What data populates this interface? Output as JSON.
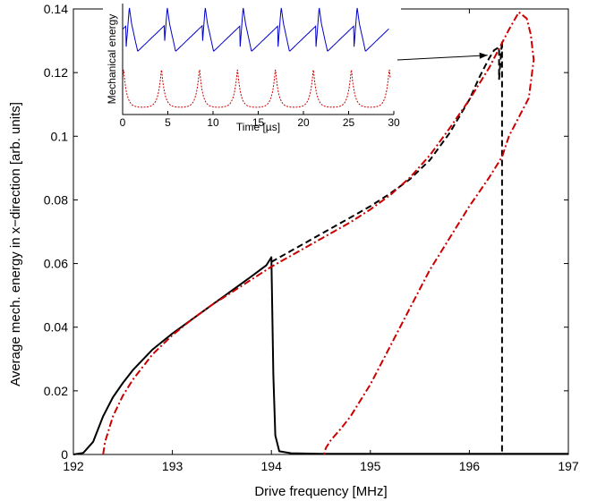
{
  "chart_data": [
    {
      "type": "line",
      "title": "",
      "xlabel": "Drive frequency [MHz]",
      "ylabel": "Average mech. energy in x−direction [arb. units]",
      "xlim": [
        192,
        197
      ],
      "ylim": [
        0,
        0.14
      ],
      "x_ticks": [
        192,
        193,
        194,
        195,
        196,
        197
      ],
      "x_tick_labels": [
        "192",
        "193",
        "194",
        "195",
        "196",
        "197"
      ],
      "y_ticks": [
        0,
        0.02,
        0.04,
        0.06,
        0.08,
        0.1,
        0.12,
        0.14
      ],
      "y_tick_labels": [
        "0",
        "0.02",
        "0.04",
        "0.06",
        "0.08",
        "0.1",
        "0.12",
        "0.14"
      ],
      "grid": false,
      "series": [
        {
          "style": "solid",
          "color": "#000000",
          "points": [
            [
              192.0,
              0.0
            ],
            [
              192.1,
              0.0005
            ],
            [
              192.2,
              0.004
            ],
            [
              192.3,
              0.012
            ],
            [
              192.4,
              0.018
            ],
            [
              192.5,
              0.0225
            ],
            [
              192.6,
              0.0265
            ],
            [
              192.8,
              0.033
            ],
            [
              193.0,
              0.038
            ],
            [
              193.2,
              0.0425
            ],
            [
              193.4,
              0.047
            ],
            [
              193.6,
              0.0515
            ],
            [
              193.8,
              0.056
            ],
            [
              193.95,
              0.0595
            ],
            [
              194.0,
              0.062
            ],
            [
              194.02,
              0.025
            ],
            [
              194.04,
              0.006
            ],
            [
              194.08,
              0.001
            ],
            [
              194.2,
              0.0004
            ],
            [
              194.5,
              0.0002
            ],
            [
              195.0,
              0.0002
            ],
            [
              196.0,
              0.0002
            ],
            [
              197.0,
              0.0002
            ]
          ]
        },
        {
          "style": "dashed",
          "color": "#000000",
          "points": [
            [
              194.0,
              0.0605
            ],
            [
              194.2,
              0.064
            ],
            [
              194.4,
              0.0675
            ],
            [
              194.6,
              0.071
            ],
            [
              194.8,
              0.0745
            ],
            [
              195.0,
              0.078
            ],
            [
              195.2,
              0.082
            ],
            [
              195.4,
              0.0865
            ],
            [
              195.6,
              0.0925
            ],
            [
              195.8,
              0.101
            ],
            [
              196.0,
              0.1115
            ],
            [
              196.1,
              0.1185
            ],
            [
              196.2,
              0.1245
            ],
            [
              196.25,
              0.127
            ],
            [
              196.3,
              0.128
            ],
            [
              196.3,
              0.118
            ],
            [
              196.33,
              0.13
            ],
            [
              196.33,
              0.0
            ]
          ]
        },
        {
          "style": "dash-dot",
          "color": "#cc0000",
          "points": [
            [
              192.3,
              0.0
            ],
            [
              192.32,
              0.004
            ],
            [
              192.35,
              0.007
            ],
            [
              192.4,
              0.012
            ],
            [
              192.5,
              0.0185
            ],
            [
              192.6,
              0.0235
            ],
            [
              192.8,
              0.0315
            ],
            [
              193.0,
              0.0375
            ],
            [
              193.2,
              0.0425
            ],
            [
              193.4,
              0.047
            ],
            [
              193.6,
              0.051
            ],
            [
              193.8,
              0.055
            ],
            [
              194.0,
              0.059
            ],
            [
              194.2,
              0.0625
            ],
            [
              194.4,
              0.066
            ],
            [
              194.6,
              0.0695
            ],
            [
              194.8,
              0.073
            ],
            [
              195.0,
              0.077
            ],
            [
              195.2,
              0.0815
            ],
            [
              195.4,
              0.087
            ],
            [
              195.6,
              0.094
            ],
            [
              195.8,
              0.1025
            ],
            [
              196.0,
              0.1115
            ],
            [
              196.2,
              0.1215
            ],
            [
              196.4,
              0.1335
            ],
            [
              196.5,
              0.139
            ],
            [
              196.58,
              0.137
            ],
            [
              196.62,
              0.132
            ],
            [
              196.65,
              0.124
            ],
            [
              196.6,
              0.112
            ],
            [
              196.4,
              0.1
            ],
            [
              196.33,
              0.0935
            ],
            [
              196.2,
              0.087
            ],
            [
              196.0,
              0.078
            ],
            [
              195.8,
              0.068
            ],
            [
              195.6,
              0.058
            ],
            [
              195.4,
              0.046
            ],
            [
              195.2,
              0.034
            ],
            [
              195.0,
              0.022
            ],
            [
              194.8,
              0.012
            ],
            [
              194.7,
              0.008
            ],
            [
              194.6,
              0.0045
            ],
            [
              194.55,
              0.002
            ],
            [
              194.53,
              0.0
            ]
          ]
        }
      ],
      "annotations": [
        {
          "type": "arrow",
          "from": "inset",
          "to": [
            196.22,
            0.126
          ]
        }
      ]
    },
    {
      "type": "line",
      "title": "",
      "xlabel": "Time [µs]",
      "ylabel": "Mechanical energy",
      "xlim": [
        0,
        30
      ],
      "x_ticks": [
        0,
        5,
        10,
        15,
        20,
        25,
        30
      ],
      "x_tick_labels": [
        "0",
        "5",
        "10",
        "15",
        "20",
        "25",
        "30"
      ],
      "y_ticks": [],
      "grid": false,
      "series": [
        {
          "style": "solid",
          "color": "#0000cc",
          "period_us": 4.2,
          "description_note": ""
        },
        {
          "style": "dotted",
          "color": "#cc0000",
          "period_us": 4.2
        }
      ]
    }
  ]
}
